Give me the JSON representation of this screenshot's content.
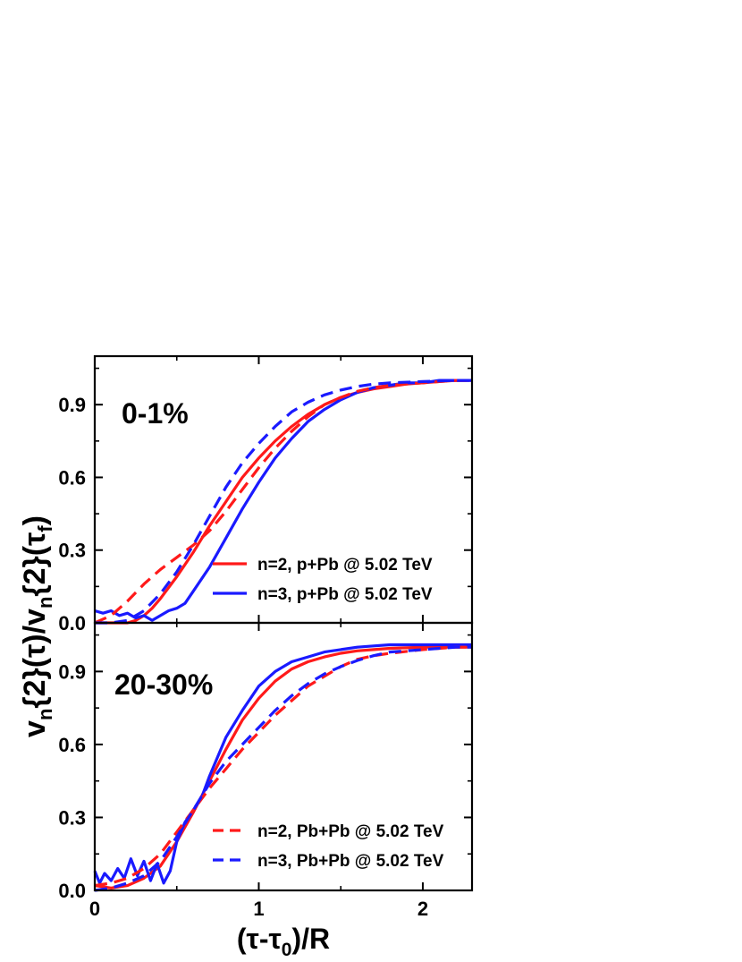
{
  "figure": {
    "ylabel": {
      "v1": "v",
      "s1": "n",
      "m1": "{2}(τ)/v",
      "s2": "n",
      "m2": "{2}(τ",
      "s3": "f",
      "m3": ")"
    },
    "xlabel": {
      "a": "(τ-τ",
      "s": "0",
      "b": ")/R"
    }
  },
  "colors": {
    "red": "#ff1a1a",
    "blue": "#1a1aff"
  },
  "chart_data": [
    {
      "type": "line",
      "panel": "top",
      "annotation": "0-1%",
      "xlim": [
        0,
        2.3
      ],
      "ylim": [
        0,
        1.1
      ],
      "xticks": [
        0,
        1,
        2
      ],
      "xtick_labels": [
        "",
        "",
        ""
      ],
      "yticks": [
        0.0,
        0.3,
        0.6,
        0.9
      ],
      "ytick_labels": [
        "0.0",
        "0.3",
        "0.6",
        "0.9"
      ],
      "legend_position": "bottom-right",
      "series": [
        {
          "name": "n=2, p+Pb   @ 5.02 TeV",
          "color": "#ff1a1a",
          "dash": "solid",
          "in_legend": true,
          "x": [
            0.0,
            0.1,
            0.2,
            0.25,
            0.3,
            0.35,
            0.4,
            0.5,
            0.6,
            0.7,
            0.8,
            0.9,
            1.0,
            1.1,
            1.2,
            1.3,
            1.4,
            1.5,
            1.6,
            1.7,
            1.8,
            1.9,
            2.0,
            2.1,
            2.2,
            2.3
          ],
          "y": [
            0.0,
            0.0,
            0.0,
            0.01,
            0.03,
            0.06,
            0.1,
            0.19,
            0.29,
            0.4,
            0.5,
            0.6,
            0.68,
            0.75,
            0.81,
            0.86,
            0.9,
            0.93,
            0.95,
            0.965,
            0.975,
            0.985,
            0.99,
            0.995,
            1.0,
            1.0
          ]
        },
        {
          "name": "n=3, p+Pb   @ 5.02 TeV",
          "color": "#1a1aff",
          "dash": "solid",
          "in_legend": true,
          "x": [
            0.0,
            0.05,
            0.1,
            0.15,
            0.2,
            0.25,
            0.3,
            0.35,
            0.4,
            0.45,
            0.5,
            0.55,
            0.6,
            0.7,
            0.8,
            0.9,
            1.0,
            1.1,
            1.2,
            1.3,
            1.4,
            1.5,
            1.6,
            1.7,
            1.8,
            1.9,
            2.0,
            2.1,
            2.2,
            2.3
          ],
          "y": [
            0.05,
            0.04,
            0.05,
            0.03,
            0.04,
            0.02,
            0.03,
            0.01,
            0.03,
            0.05,
            0.06,
            0.08,
            0.13,
            0.23,
            0.35,
            0.47,
            0.58,
            0.68,
            0.76,
            0.83,
            0.88,
            0.92,
            0.95,
            0.97,
            0.98,
            0.99,
            0.99,
            1.0,
            1.0,
            1.0
          ]
        },
        {
          "name": "n=2, Pb+Pb @ 5.02 TeV",
          "color": "#ff1a1a",
          "dash": "dashed",
          "in_legend": false,
          "x": [
            0.0,
            0.1,
            0.2,
            0.3,
            0.4,
            0.5,
            0.6,
            0.7,
            0.8,
            0.9,
            1.0,
            1.1,
            1.2,
            1.3,
            1.4,
            1.5,
            1.6,
            1.7,
            1.8,
            2.0,
            2.2,
            2.3
          ],
          "y": [
            0.0,
            0.03,
            0.09,
            0.16,
            0.22,
            0.27,
            0.32,
            0.38,
            0.46,
            0.55,
            0.64,
            0.72,
            0.79,
            0.85,
            0.9,
            0.93,
            0.955,
            0.97,
            0.98,
            0.99,
            1.0,
            1.0
          ]
        },
        {
          "name": "n=3, Pb+Pb @ 5.02 TeV",
          "color": "#1a1aff",
          "dash": "dashed",
          "in_legend": false,
          "x": [
            0.0,
            0.1,
            0.2,
            0.3,
            0.4,
            0.5,
            0.6,
            0.7,
            0.8,
            0.9,
            1.0,
            1.1,
            1.2,
            1.3,
            1.4,
            1.5,
            1.6,
            1.7,
            1.8,
            2.0,
            2.2,
            2.3
          ],
          "y": [
            0.0,
            0.0,
            0.01,
            0.05,
            0.12,
            0.21,
            0.32,
            0.44,
            0.56,
            0.66,
            0.74,
            0.81,
            0.87,
            0.91,
            0.94,
            0.96,
            0.975,
            0.985,
            0.99,
            0.995,
            1.0,
            1.0
          ]
        }
      ]
    },
    {
      "type": "line",
      "panel": "bottom",
      "annotation": "20-30%",
      "xlim": [
        0,
        2.3
      ],
      "ylim": [
        0,
        1.1
      ],
      "xticks": [
        0,
        1,
        2
      ],
      "xtick_labels": [
        "0",
        "1",
        "2"
      ],
      "yticks": [
        0.0,
        0.3,
        0.6,
        0.9
      ],
      "ytick_labels": [
        "0.0",
        "0.3",
        "0.6",
        "0.9"
      ],
      "legend_position": "bottom-right",
      "series": [
        {
          "name": "n=2, p+Pb   @ 5.02 TeV",
          "color": "#ff1a1a",
          "dash": "solid",
          "in_legend": false,
          "x": [
            0.0,
            0.1,
            0.2,
            0.3,
            0.4,
            0.5,
            0.6,
            0.7,
            0.8,
            0.9,
            1.0,
            1.1,
            1.2,
            1.3,
            1.4,
            1.5,
            1.6,
            1.7,
            1.8,
            2.0,
            2.2,
            2.3
          ],
          "y": [
            0.02,
            0.01,
            0.02,
            0.05,
            0.1,
            0.2,
            0.32,
            0.45,
            0.58,
            0.7,
            0.79,
            0.86,
            0.91,
            0.94,
            0.96,
            0.975,
            0.985,
            0.99,
            0.995,
            1.0,
            1.0,
            1.0
          ]
        },
        {
          "name": "n=3, p+Pb   @ 5.02 TeV",
          "color": "#1a1aff",
          "dash": "solid",
          "in_legend": false,
          "x": [
            0.0,
            0.03,
            0.06,
            0.1,
            0.14,
            0.18,
            0.22,
            0.26,
            0.3,
            0.34,
            0.38,
            0.42,
            0.46,
            0.5,
            0.55,
            0.6,
            0.65,
            0.7,
            0.8,
            0.9,
            1.0,
            1.1,
            1.2,
            1.3,
            1.4,
            1.5,
            1.6,
            1.7,
            1.8,
            1.9,
            2.0,
            2.1,
            2.2,
            2.3
          ],
          "y": [
            0.08,
            0.03,
            0.07,
            0.04,
            0.09,
            0.05,
            0.13,
            0.06,
            0.12,
            0.04,
            0.11,
            0.03,
            0.08,
            0.2,
            0.28,
            0.33,
            0.38,
            0.47,
            0.63,
            0.74,
            0.84,
            0.9,
            0.94,
            0.96,
            0.98,
            0.99,
            1.0,
            1.005,
            1.01,
            1.01,
            1.01,
            1.01,
            1.01,
            1.01
          ]
        },
        {
          "name": "n=2, Pb+Pb @ 5.02 TeV",
          "color": "#ff1a1a",
          "dash": "dashed",
          "in_legend": true,
          "x": [
            0.0,
            0.1,
            0.2,
            0.3,
            0.4,
            0.5,
            0.6,
            0.7,
            0.8,
            0.9,
            1.0,
            1.1,
            1.2,
            1.3,
            1.4,
            1.5,
            1.6,
            1.7,
            1.8,
            2.0,
            2.2,
            2.3
          ],
          "y": [
            0.02,
            0.03,
            0.05,
            0.09,
            0.15,
            0.24,
            0.33,
            0.42,
            0.5,
            0.58,
            0.65,
            0.72,
            0.78,
            0.84,
            0.88,
            0.92,
            0.95,
            0.965,
            0.975,
            0.99,
            1.0,
            1.0
          ]
        },
        {
          "name": "n=3, Pb+Pb @ 5.02 TeV",
          "color": "#1a1aff",
          "dash": "dashed",
          "in_legend": true,
          "x": [
            0.0,
            0.1,
            0.2,
            0.3,
            0.4,
            0.5,
            0.6,
            0.7,
            0.8,
            0.9,
            1.0,
            1.1,
            1.2,
            1.3,
            1.4,
            1.5,
            1.6,
            1.7,
            1.8,
            2.0,
            2.2,
            2.3
          ],
          "y": [
            0.0,
            0.01,
            0.03,
            0.06,
            0.12,
            0.22,
            0.33,
            0.44,
            0.53,
            0.6,
            0.67,
            0.74,
            0.8,
            0.85,
            0.89,
            0.92,
            0.945,
            0.965,
            0.98,
            0.99,
            1.0,
            1.0
          ]
        }
      ]
    }
  ]
}
